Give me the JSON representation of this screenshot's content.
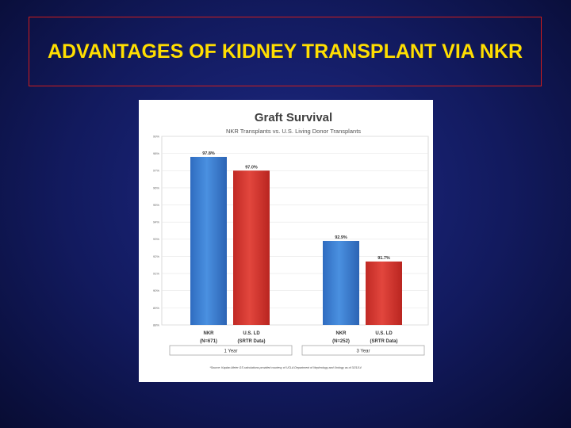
{
  "slide": {
    "title": "ADVANTAGES OF KIDNEY TRANSPLANT VIA NKR"
  },
  "colors": {
    "nkr": "#3c7fd4",
    "us_ld": "#d63a33",
    "title": "#ffde00",
    "border": "#d01c1c"
  },
  "chart_data": {
    "type": "bar",
    "title": "Graft Survival",
    "subtitle": "NKR Transplants vs. U.S. Living Donor Transplants",
    "ylim": [
      88,
      99
    ],
    "yticks": [
      "88%",
      "89%",
      "90%",
      "91%",
      "92%",
      "93%",
      "94%",
      "95%",
      "96%",
      "97%",
      "98%",
      "99%"
    ],
    "groups": [
      {
        "name": "1 Year",
        "bars": [
          {
            "series": "NKR",
            "label_line1": "NKR",
            "label_line2": "(N=671)",
            "value": 97.8,
            "value_label": "97.8%"
          },
          {
            "series": "U.S. LD",
            "label_line1": "U.S. LD",
            "label_line2": "(SRTR Data)",
            "value": 97.0,
            "value_label": "97.0%"
          }
        ]
      },
      {
        "name": "3 Year",
        "bars": [
          {
            "series": "NKR",
            "label_line1": "NKR",
            "label_line2": "(N=252)",
            "value": 92.9,
            "value_label": "92.9%"
          },
          {
            "series": "U.S. LD",
            "label_line1": "U.S. LD",
            "label_line2": "(SRTR Data)",
            "value": 91.7,
            "value_label": "91.7%"
          }
        ]
      }
    ],
    "footnote": "*Source: Kaplan-Meier GS calculations provided courtesy of UCLA Department of Nephrology and Urology as of 3/21/14"
  }
}
